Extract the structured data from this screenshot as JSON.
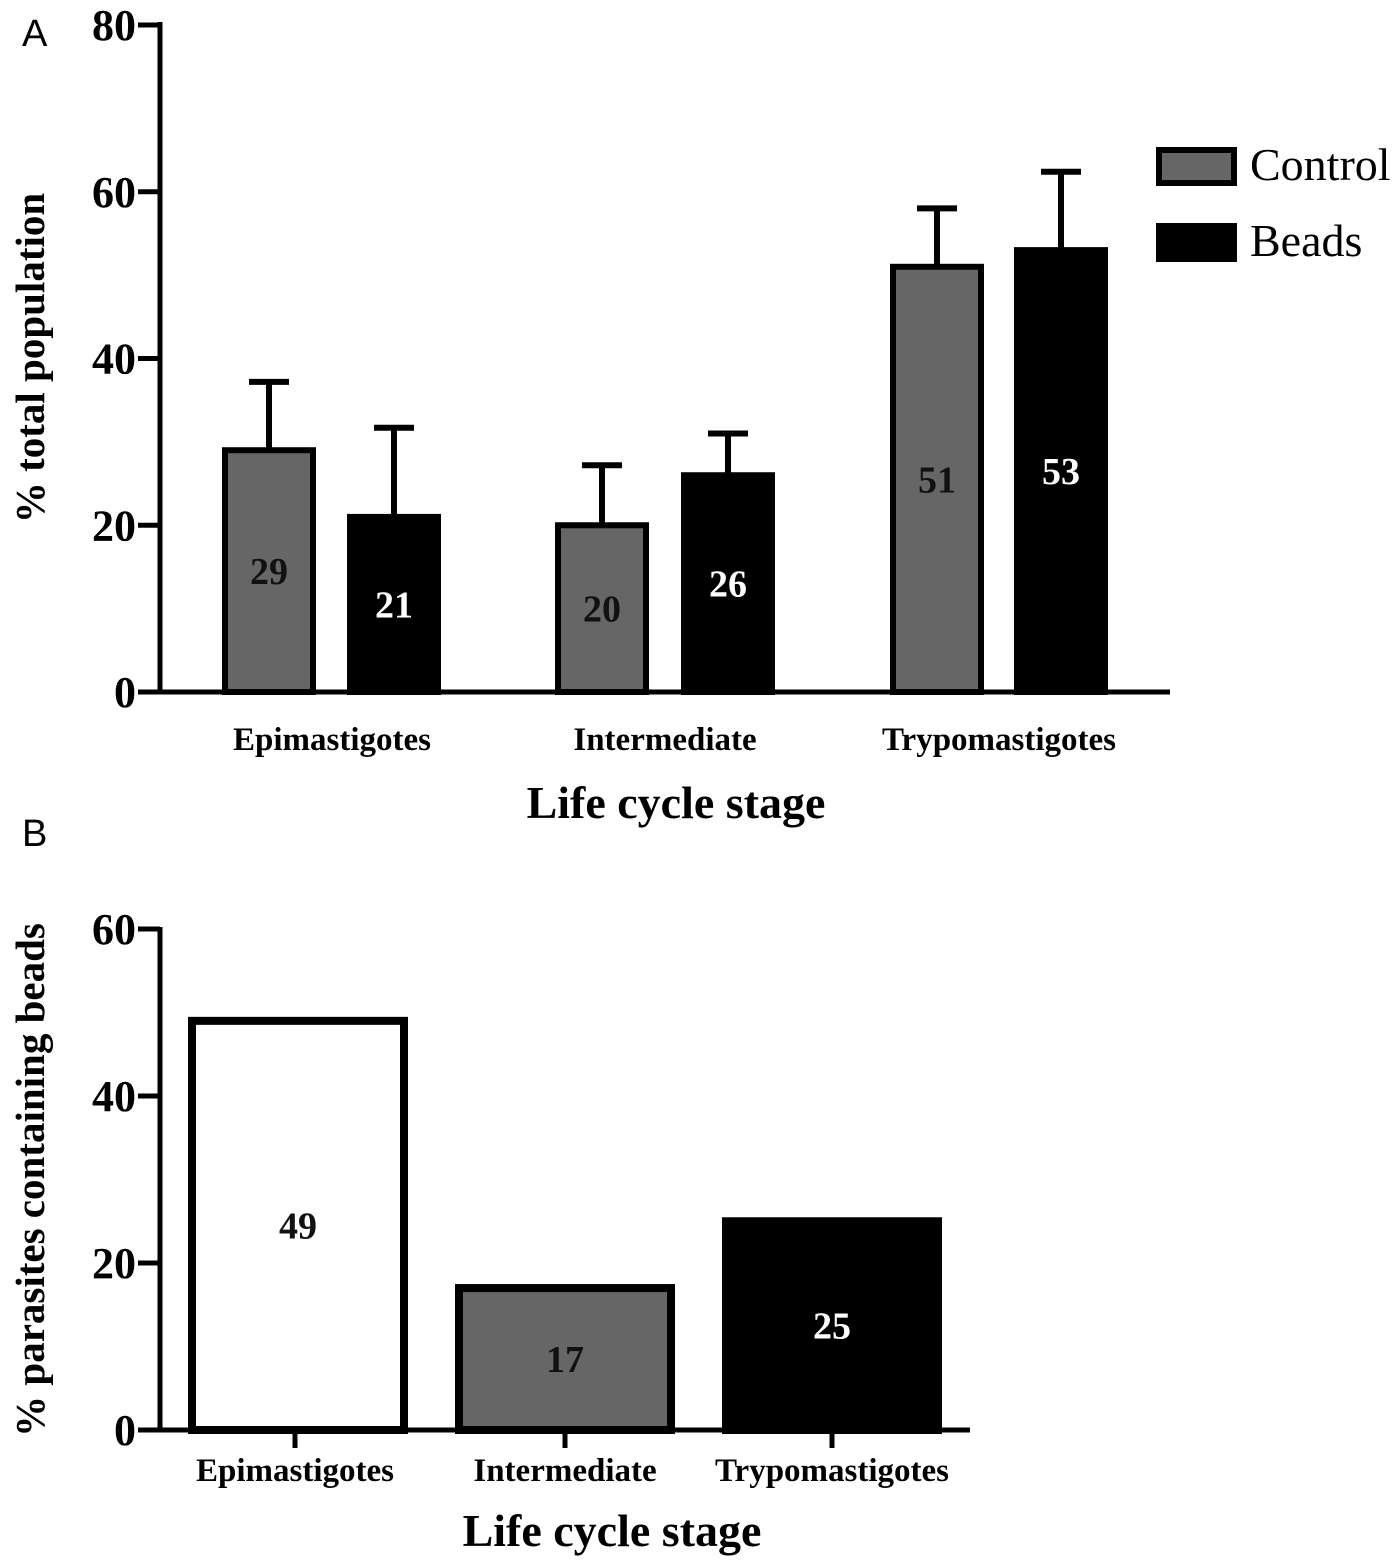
{
  "chart_data": [
    {
      "panel": "A",
      "type": "bar",
      "categories": [
        "Epimastigotes",
        "Intermediate",
        "Trypomastigotes"
      ],
      "series": [
        {
          "name": "Control",
          "values": [
            29,
            20,
            51
          ],
          "errors": [
            8.2,
            7.2,
            7.0
          ],
          "color": "#666666"
        },
        {
          "name": "Beads",
          "values": [
            21,
            26,
            53
          ],
          "errors": [
            10.7,
            5.0,
            9.4
          ],
          "color": "#000000"
        }
      ],
      "bar_labels": [
        [
          "29",
          "20",
          "51"
        ],
        [
          "21",
          "26",
          "53"
        ]
      ],
      "xlabel": "Life cycle stage",
      "ylabel": "% total population",
      "ylim": [
        0,
        80
      ],
      "yticks": [
        "0",
        "20",
        "40",
        "60",
        "80"
      ],
      "legend_position": "right"
    },
    {
      "panel": "B",
      "type": "bar",
      "categories": [
        "Epimastigotes",
        "Intermediate",
        "Trypomastigotes"
      ],
      "values": [
        49,
        17,
        25
      ],
      "colors": [
        "#ffffff",
        "#666666",
        "#000000"
      ],
      "bar_labels": [
        "49",
        "17",
        "25"
      ],
      "xlabel": "Life cycle stage",
      "ylabel": "% parasites containing beads",
      "ylim": [
        0,
        60
      ],
      "yticks": [
        "0",
        "20",
        "40",
        "60"
      ]
    }
  ]
}
